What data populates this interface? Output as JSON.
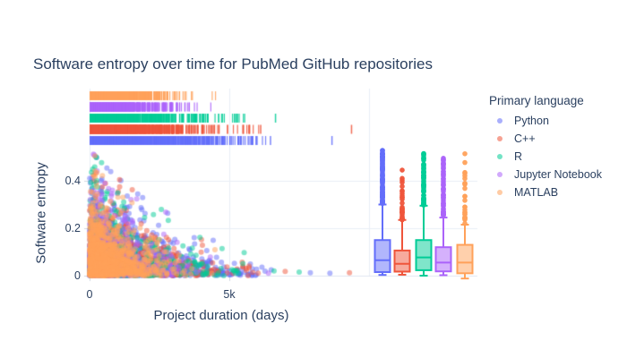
{
  "chart_data": {
    "type": "scatter",
    "subtype": "scatter with top marginal rug per group and grouped box plots on right",
    "title": "Software entropy over time for PubMed GitHub repositories",
    "xlabel": "Project duration (days)",
    "ylabel": "Software entropy",
    "legend_title": "Primary language",
    "legend_position": "right",
    "grid": true,
    "background_color": "#ffffff",
    "text_color": "#2a3f5f",
    "grid_color": "#e9eef6",
    "zeroline_color": "#e0e6f0",
    "tick_color": "#d0d7e2",
    "xlim_days": [
      -250,
      13900
    ],
    "ylim": [
      0,
      0.55
    ],
    "x_ticks": [
      {
        "v": 0,
        "label": "0"
      },
      {
        "v": 5000,
        "label": "5k"
      }
    ],
    "x_gridlines_days": [
      0,
      5000,
      10000
    ],
    "y_ticks": [
      {
        "v": 0,
        "label": "0"
      },
      {
        "v": 0.2,
        "label": "0.2"
      },
      {
        "v": 0.4,
        "label": "0.4"
      }
    ],
    "rug_row_order_top_to_bottom": [
      "MATLAB",
      "Jupyter Notebook",
      "R",
      "C++",
      "Python"
    ],
    "envelope": {
      "y0": 0.53,
      "decay_days": 4000
    },
    "series": [
      {
        "name": "Python",
        "color": "#636EFA",
        "seed": 11,
        "scatter": {
          "n": 1600,
          "x_scale": 1400,
          "x_max": 6300,
          "y_frac_scale": 0.18
        },
        "far_points": [
          [
            6500,
            0.025
          ],
          [
            7900,
            0.012
          ],
          [
            8600,
            0.01
          ]
        ],
        "rug_far": [
          6450,
          8650
        ],
        "box": {
          "q1": 0.015,
          "median": 0.065,
          "q3": 0.15,
          "whisker_low": 0.003,
          "whisker_high": 0.3,
          "outlier_max": 0.528,
          "n_outliers": 100,
          "extra_outliers": []
        }
      },
      {
        "name": "C++",
        "color": "#EF553B",
        "seed": 22,
        "scatter": {
          "n": 950,
          "x_scale": 1300,
          "x_max": 6300,
          "y_frac_scale": 0.16
        },
        "far_points": [
          [
            5600,
            0.03
          ],
          [
            7000,
            0.018
          ],
          [
            9300,
            0.012
          ]
        ],
        "rug_far": [
          6100,
          9350
        ],
        "box": {
          "q1": 0.017,
          "median": 0.05,
          "q3": 0.106,
          "whisker_low": 0.004,
          "whisker_high": 0.235,
          "outlier_max": 0.41,
          "n_outliers": 30,
          "extra_outliers": [
            0.445
          ]
        }
      },
      {
        "name": "R",
        "color": "#00CC96",
        "seed": 33,
        "scatter": {
          "n": 750,
          "x_scale": 1200,
          "x_max": 5900,
          "y_frac_scale": 0.18
        },
        "far_points": [
          [
            6600,
            0.02
          ],
          [
            7500,
            0.015
          ]
        ],
        "rug_far": [
          6630
        ],
        "box": {
          "q1": 0.023,
          "median": 0.077,
          "q3": 0.15,
          "whisker_low": 0.0,
          "whisker_high": 0.295,
          "outlier_max": 0.515,
          "n_outliers": 65,
          "extra_outliers": []
        }
      },
      {
        "name": "Jupyter Notebook",
        "color": "#AB63FA",
        "seed": 44,
        "scatter": {
          "n": 950,
          "x_scale": 800,
          "x_max": 4800,
          "y_frac_scale": 0.17
        },
        "far_points": [
          [
            6400,
            0.01
          ]
        ],
        "rug_far": [],
        "box": {
          "q1": 0.018,
          "median": 0.055,
          "q3": 0.12,
          "whisker_low": 0.002,
          "whisker_high": 0.245,
          "outlier_max": 0.495,
          "n_outliers": 60,
          "extra_outliers": []
        }
      },
      {
        "name": "MATLAB",
        "color": "#FFA15A",
        "seed": 55,
        "scatter": {
          "n": 1500,
          "x_scale": 650,
          "x_max": 4500,
          "y_frac_scale": 0.15
        },
        "far_points": [],
        "rug_far": [],
        "box": {
          "q1": 0.01,
          "median": 0.055,
          "q3": 0.13,
          "whisker_low": -0.012,
          "whisker_high": 0.215,
          "outlier_max": 0.435,
          "n_outliers": 24,
          "extra_outliers": [
            0.514,
            0.477
          ]
        }
      }
    ]
  }
}
